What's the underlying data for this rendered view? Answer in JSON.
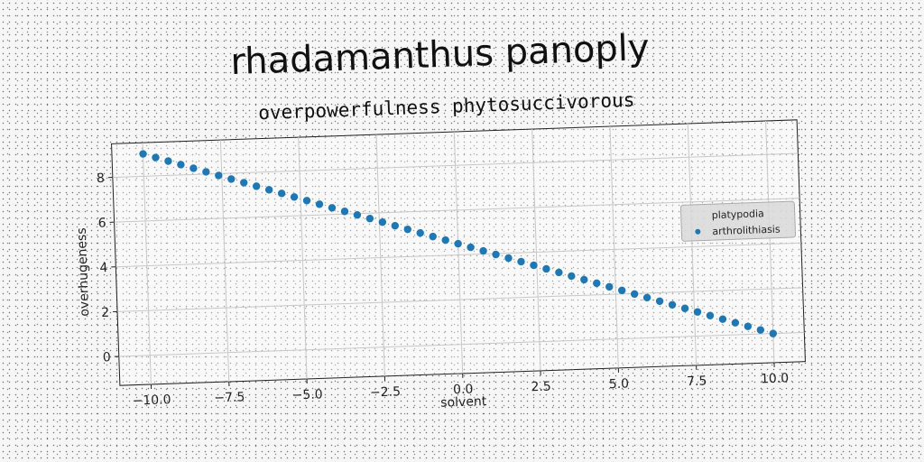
{
  "chart_data": {
    "type": "scatter",
    "title": "rhadamanthus panoply",
    "subtitle": "overpowerfulness phytosuccivorous",
    "xlabel": "solvent",
    "ylabel": "overhugeness",
    "xlim": [
      -11,
      11
    ],
    "ylim": [
      -1.3,
      9.5
    ],
    "xticks": [
      -10.0,
      -7.5,
      -5.0,
      -2.5,
      0.0,
      2.5,
      5.0,
      7.5,
      10.0
    ],
    "xtick_labels": [
      "−10.0",
      "−7.5",
      "−5.0",
      "−2.5",
      "0.0",
      "2.5",
      "5.0",
      "7.5",
      "10.0"
    ],
    "yticks": [
      0,
      2,
      4,
      6,
      8
    ],
    "ytick_labels": [
      "0",
      "2",
      "4",
      "6",
      "8"
    ],
    "grid": true,
    "legend": {
      "position": "right",
      "entries": [
        {
          "label": "platypodia",
          "marker": "none"
        },
        {
          "label": "arthrolithiasis",
          "marker": "dot"
        }
      ]
    },
    "series": [
      {
        "name": "arthrolithiasis",
        "color": "#1f77b4",
        "x": [
          -10.0,
          -9.6,
          -9.2,
          -8.8,
          -8.4,
          -8.0,
          -7.6,
          -7.2,
          -6.8,
          -6.4,
          -6.0,
          -5.6,
          -5.2,
          -4.8,
          -4.4,
          -4.0,
          -3.6,
          -3.2,
          -2.8,
          -2.4,
          -2.0,
          -1.6,
          -1.2,
          -0.8,
          -0.4,
          0.0,
          0.4,
          0.8,
          1.2,
          1.6,
          2.0,
          2.4,
          2.8,
          3.2,
          3.6,
          4.0,
          4.4,
          4.8,
          5.2,
          5.6,
          6.0,
          6.4,
          6.8,
          7.2,
          7.6,
          8.0,
          8.4,
          8.8,
          9.2,
          9.6,
          10.0
        ],
        "y": [
          9.0,
          8.82,
          8.64,
          8.46,
          8.28,
          8.1,
          7.92,
          7.74,
          7.56,
          7.38,
          7.2,
          7.02,
          6.84,
          6.66,
          6.48,
          6.3,
          6.12,
          5.94,
          5.76,
          5.58,
          5.4,
          5.22,
          5.04,
          4.86,
          4.68,
          4.5,
          4.32,
          4.14,
          3.96,
          3.78,
          3.6,
          3.42,
          3.24,
          3.06,
          2.88,
          2.7,
          2.52,
          2.34,
          2.16,
          1.98,
          1.8,
          1.62,
          1.44,
          1.26,
          1.08,
          0.9,
          0.72,
          0.54,
          0.36,
          0.18,
          0.0
        ]
      }
    ]
  }
}
